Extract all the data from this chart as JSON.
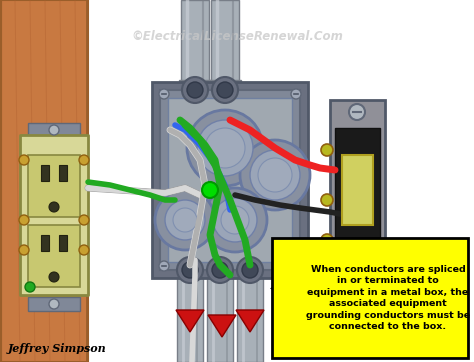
{
  "fig_width": 4.74,
  "fig_height": 3.62,
  "dpi": 100,
  "bg_color": "#ffffff",
  "watermark_text": "©ElectricalLicenseRenewal.Com",
  "watermark_color": "#c8c8c8",
  "watermark_fontsize": 8.5,
  "author_text": "Jeffrey Simpson",
  "author_color": "#000000",
  "author_fontsize": 8,
  "callout_text": "When conductors are spliced\nin or terminated to\nequipment in a metal box, the\nassociated equipment\ngrounding conductors must be\nconnected to the box.",
  "callout_bg": "#ffff00",
  "callout_border": "#000000",
  "callout_fontsize": 6.8,
  "wood_color": "#c87941",
  "wood_dark": "#9a5e2a",
  "wood_grain": "#b06030",
  "metal_box_face": "#a0a8b0",
  "metal_box_rim": "#808898",
  "metal_box_inner": "#888fa0",
  "metal_box_shadow": "#6a7080",
  "conduit_light": "#c8cdd5",
  "conduit_mid": "#a8b0b8",
  "conduit_dark": "#787e88",
  "outlet_body": "#d8d898",
  "outlet_face": "#c8c870",
  "outlet_dark": "#888840",
  "switch_body": "#1a1a1a",
  "switch_plate": "#909098",
  "switch_toggle": "#d0d060",
  "switch_screw": "#b8b820",
  "wire_red": "#ee2222",
  "wire_black": "#222222",
  "wire_white": "#d8d8d8",
  "wire_green": "#22aa22",
  "wire_blue": "#3366ee",
  "arrow_yellow": "#ffee00",
  "arrow_border": "#000000",
  "dot_green": "#00dd00",
  "indicator_red": "#cc1111"
}
